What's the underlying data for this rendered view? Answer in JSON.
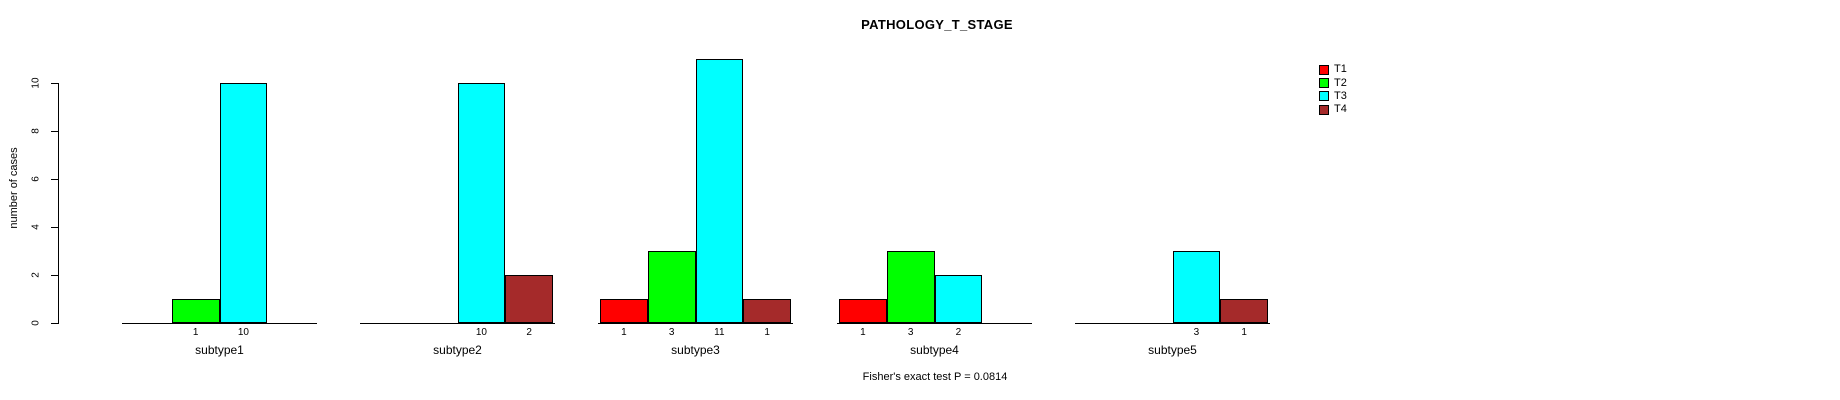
{
  "title": "PATHOLOGY_T_STAGE",
  "footnote": "Fisher's exact test P = 0.0814",
  "chart_data": {
    "type": "bar",
    "title": "PATHOLOGY_T_STAGE",
    "xlabel": "",
    "ylabel": "number of cases",
    "categories": [
      "subtype1",
      "subtype2",
      "subtype3",
      "subtype4",
      "subtype5"
    ],
    "series": [
      {
        "name": "T1",
        "color": "#FF0000",
        "values": [
          0,
          0,
          1,
          1,
          0
        ]
      },
      {
        "name": "T2",
        "color": "#00FF00",
        "values": [
          1,
          0,
          3,
          3,
          0
        ]
      },
      {
        "name": "T3",
        "color": "#00FFFF",
        "values": [
          10,
          10,
          11,
          2,
          3
        ]
      },
      {
        "name": "T4",
        "color": "#A52A2A",
        "values": [
          0,
          2,
          1,
          0,
          1
        ]
      }
    ],
    "yticks": [
      0,
      2,
      4,
      6,
      8,
      10
    ],
    "ylim": [
      0,
      11
    ],
    "grid": false,
    "legend_position": "right",
    "bar_value_labels": "shown under each nonzero bar",
    "annotation": "Fisher's exact test P = 0.0814"
  }
}
